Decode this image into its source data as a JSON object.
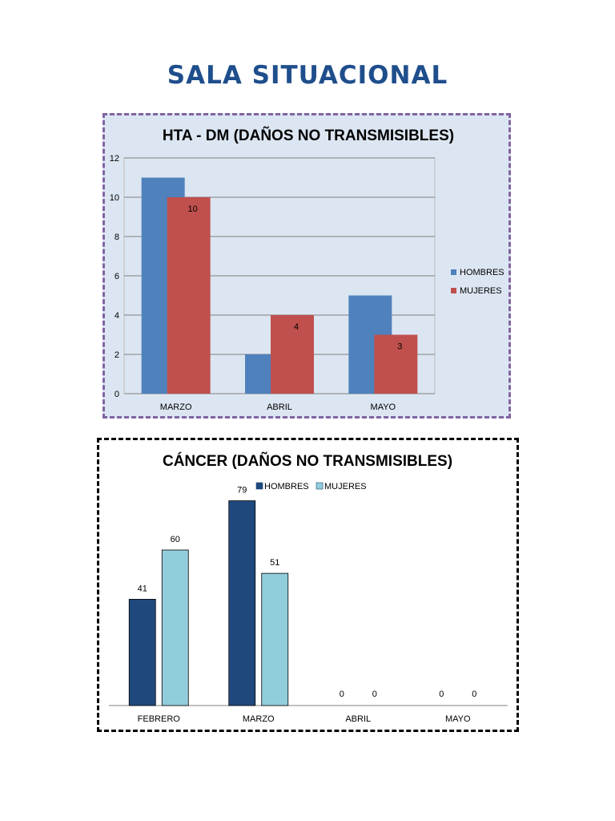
{
  "page": {
    "title": "SALA SITUACIONAL"
  },
  "chart_data": [
    {
      "type": "bar",
      "title": "HTA - DM (DAÑOS NO TRANSMISIBLES)",
      "categories": [
        "MARZO",
        "ABRIL",
        "MAYO"
      ],
      "series": [
        {
          "name": "HOMBRES",
          "values": [
            11,
            2,
            5
          ],
          "color": "#4f81bd"
        },
        {
          "name": "MUJERES",
          "values": [
            10,
            4,
            3
          ],
          "color": "#c0504d"
        }
      ],
      "data_labels": {
        "series": "MUJERES",
        "labels": [
          "10",
          "4",
          "3"
        ]
      },
      "ylim": [
        0,
        12
      ],
      "yticks": [
        "0",
        "2",
        "4",
        "6",
        "8",
        "10",
        "12"
      ],
      "grid": true,
      "legend": "right"
    },
    {
      "type": "bar",
      "title": "CÁNCER (DAÑOS NO TRANSMISIBLES)",
      "categories": [
        "FEBRERO",
        "MARZO",
        "ABRIL",
        "MAYO"
      ],
      "series": [
        {
          "name": "HOMBRES",
          "values": [
            41,
            79,
            0,
            0
          ],
          "color": "#1f497d"
        },
        {
          "name": "MUJERES",
          "values": [
            60,
            51,
            0,
            0
          ],
          "color": "#92cddc"
        }
      ],
      "data_labels": {
        "series": "all"
      },
      "ylim": [
        0,
        90
      ],
      "grid": false,
      "legend": "top"
    }
  ]
}
